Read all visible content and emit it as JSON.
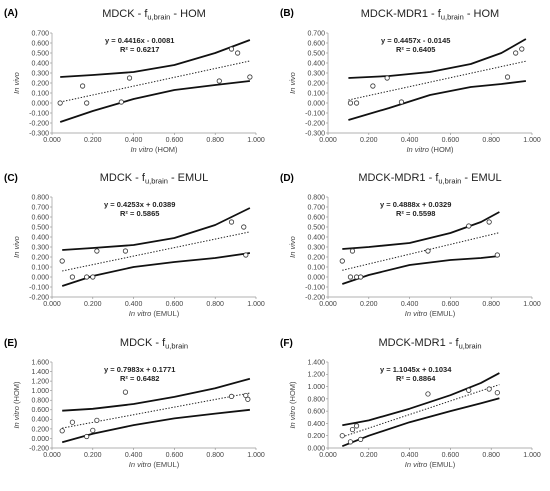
{
  "chart_data": [
    {
      "panel": "(A)",
      "type": "scatter",
      "title": {
        "main": "MDCK - f",
        "sub": "u,brain",
        "tail": " - HOM"
      },
      "xlabel": {
        "italic": "In vitro",
        "rest": " (HOM)"
      },
      "ylabel": {
        "italic": "In vivo",
        "rest": ""
      },
      "equation": "y = 0.4416x - 0.0081",
      "r2": "R² = 0.6217",
      "xlim": [
        0,
        1
      ],
      "ylim": [
        -0.3,
        0.7
      ],
      "xticks": [
        "0.000",
        "0.200",
        "0.400",
        "0.600",
        "0.800",
        "1.000"
      ],
      "yticks": [
        "-0.300",
        "-0.200",
        "-0.100",
        "0.000",
        "0.100",
        "0.200",
        "0.300",
        "0.400",
        "0.500",
        "0.600",
        "0.700"
      ],
      "points": [
        [
          0.04,
          0.0
        ],
        [
          0.15,
          0.17
        ],
        [
          0.17,
          0.0
        ],
        [
          0.34,
          0.01
        ],
        [
          0.38,
          0.25
        ],
        [
          0.82,
          0.22
        ],
        [
          0.88,
          0.54
        ],
        [
          0.91,
          0.5
        ],
        [
          0.97,
          0.26
        ]
      ],
      "trend": {
        "slope": 0.4416,
        "intercept": -0.0081,
        "x": [
          0.04,
          0.97
        ]
      },
      "band_upper": [
        [
          0.04,
          0.26
        ],
        [
          0.2,
          0.28
        ],
        [
          0.4,
          0.31
        ],
        [
          0.6,
          0.38
        ],
        [
          0.8,
          0.5
        ],
        [
          0.97,
          0.63
        ]
      ],
      "band_lower": [
        [
          0.04,
          -0.19
        ],
        [
          0.2,
          -0.08
        ],
        [
          0.4,
          0.04
        ],
        [
          0.6,
          0.13
        ],
        [
          0.8,
          0.18
        ],
        [
          0.97,
          0.22
        ]
      ]
    },
    {
      "panel": "(B)",
      "type": "scatter",
      "title": {
        "main": "MDCK-MDR1 - f",
        "sub": "u,brain",
        "tail": " - HOM"
      },
      "xlabel": {
        "italic": "In vitro",
        "rest": " (HOM)"
      },
      "ylabel": {
        "italic": "In vivo",
        "rest": ""
      },
      "equation": "y = 0.4457x - 0.0145",
      "r2": "R² = 0.6405",
      "xlim": [
        0,
        1
      ],
      "ylim": [
        -0.3,
        0.7
      ],
      "xticks": [
        "0.000",
        "0.200",
        "0.400",
        "0.600",
        "0.800",
        "1.000"
      ],
      "yticks": [
        "-0.300",
        "-0.200",
        "-0.100",
        "0.000",
        "0.100",
        "0.200",
        "0.300",
        "0.400",
        "0.500",
        "0.600",
        "0.700"
      ],
      "points": [
        [
          0.11,
          0.0
        ],
        [
          0.14,
          0.0
        ],
        [
          0.22,
          0.17
        ],
        [
          0.29,
          0.25
        ],
        [
          0.36,
          0.01
        ],
        [
          0.88,
          0.26
        ],
        [
          0.92,
          0.5
        ],
        [
          0.95,
          0.54
        ]
      ],
      "trend": {
        "slope": 0.4457,
        "intercept": -0.0145,
        "x": [
          0.1,
          0.97
        ]
      },
      "band_upper": [
        [
          0.1,
          0.25
        ],
        [
          0.3,
          0.27
        ],
        [
          0.5,
          0.31
        ],
        [
          0.7,
          0.39
        ],
        [
          0.85,
          0.5
        ],
        [
          0.97,
          0.64
        ]
      ],
      "band_lower": [
        [
          0.1,
          -0.17
        ],
        [
          0.3,
          -0.05
        ],
        [
          0.5,
          0.08
        ],
        [
          0.7,
          0.16
        ],
        [
          0.85,
          0.19
        ],
        [
          0.97,
          0.22
        ]
      ]
    },
    {
      "panel": "(C)",
      "type": "scatter",
      "title": {
        "main": "MDCK - f",
        "sub": "u,brain",
        "tail": " - EMUL"
      },
      "xlabel": {
        "italic": "In vitro",
        "rest": " (EMUL)"
      },
      "ylabel": {
        "italic": "In vivo",
        "rest": ""
      },
      "equation": "y = 0.4253x + 0.0389",
      "r2": "R² = 0.5865",
      "xlim": [
        0,
        1
      ],
      "ylim": [
        -0.2,
        0.8
      ],
      "xticks": [
        "0.000",
        "0.200",
        "0.400",
        "0.600",
        "0.800",
        "1.000"
      ],
      "yticks": [
        "-0.200",
        "-0.100",
        "0.000",
        "0.100",
        "0.200",
        "0.300",
        "0.400",
        "0.500",
        "0.600",
        "0.700",
        "0.800"
      ],
      "points": [
        [
          0.05,
          0.16
        ],
        [
          0.1,
          0.0
        ],
        [
          0.17,
          0.0
        ],
        [
          0.2,
          0.0
        ],
        [
          0.22,
          0.26
        ],
        [
          0.36,
          0.26
        ],
        [
          0.88,
          0.55
        ],
        [
          0.94,
          0.5
        ],
        [
          0.95,
          0.22
        ]
      ],
      "trend": {
        "slope": 0.4253,
        "intercept": 0.0389,
        "x": [
          0.05,
          0.97
        ]
      },
      "band_upper": [
        [
          0.05,
          0.27
        ],
        [
          0.2,
          0.29
        ],
        [
          0.4,
          0.32
        ],
        [
          0.6,
          0.39
        ],
        [
          0.8,
          0.52
        ],
        [
          0.97,
          0.69
        ]
      ],
      "band_lower": [
        [
          0.05,
          -0.09
        ],
        [
          0.2,
          0.01
        ],
        [
          0.4,
          0.1
        ],
        [
          0.6,
          0.15
        ],
        [
          0.8,
          0.19
        ],
        [
          0.97,
          0.24
        ]
      ]
    },
    {
      "panel": "(D)",
      "type": "scatter",
      "title": {
        "main": "MDCK-MDR1 - f",
        "sub": "u,brain",
        "tail": " - EMUL"
      },
      "xlabel": {
        "italic": "In vitro",
        "rest": " (EMUL)"
      },
      "ylabel": {
        "italic": "In vivo",
        "rest": ""
      },
      "equation": "y = 0.4888x + 0.0329",
      "r2": "R² = 0.5598",
      "xlim": [
        0,
        1
      ],
      "ylim": [
        -0.2,
        0.8
      ],
      "xticks": [
        "0.000",
        "0.200",
        "0.400",
        "0.600",
        "0.800",
        "1.000"
      ],
      "yticks": [
        "-0.200",
        "-0.100",
        "0.000",
        "0.100",
        "0.200",
        "0.300",
        "0.400",
        "0.500",
        "0.600",
        "0.700",
        "0.800"
      ],
      "points": [
        [
          0.07,
          0.16
        ],
        [
          0.11,
          0.0
        ],
        [
          0.12,
          0.26
        ],
        [
          0.14,
          0.0
        ],
        [
          0.16,
          0.0
        ],
        [
          0.49,
          0.26
        ],
        [
          0.69,
          0.51
        ],
        [
          0.79,
          0.55
        ],
        [
          0.83,
          0.22
        ]
      ],
      "trend": {
        "slope": 0.4888,
        "intercept": 0.0329,
        "x": [
          0.07,
          0.84
        ]
      },
      "band_upper": [
        [
          0.07,
          0.28
        ],
        [
          0.2,
          0.3
        ],
        [
          0.4,
          0.34
        ],
        [
          0.6,
          0.44
        ],
        [
          0.75,
          0.55
        ],
        [
          0.84,
          0.65
        ]
      ],
      "band_lower": [
        [
          0.07,
          -0.07
        ],
        [
          0.2,
          0.02
        ],
        [
          0.4,
          0.12
        ],
        [
          0.6,
          0.17
        ],
        [
          0.75,
          0.19
        ],
        [
          0.84,
          0.21
        ]
      ]
    },
    {
      "panel": "(E)",
      "type": "scatter",
      "title": {
        "main": "MDCK - f",
        "sub": "u,brain",
        "tail": ""
      },
      "xlabel": {
        "italic": "In vitro",
        "rest": " (EMUL)"
      },
      "ylabel": {
        "italic": "In vitro",
        "rest": " (HOM)"
      },
      "equation": "y = 0.7983x + 0.1771",
      "r2": "R² = 0.6482",
      "xlim": [
        0,
        1
      ],
      "ylim": [
        -0.2,
        1.6
      ],
      "xticks": [
        "0.000",
        "0.200",
        "0.400",
        "0.600",
        "0.800",
        "1.000"
      ],
      "yticks": [
        "-0.200",
        "0.000",
        "0.200",
        "0.400",
        "0.600",
        "0.800",
        "1.000",
        "1.200",
        "1.400",
        "1.600"
      ],
      "points": [
        [
          0.05,
          0.16
        ],
        [
          0.1,
          0.34
        ],
        [
          0.17,
          0.04
        ],
        [
          0.2,
          0.17
        ],
        [
          0.22,
          0.38
        ],
        [
          0.36,
          0.97
        ],
        [
          0.88,
          0.88
        ],
        [
          0.95,
          0.9
        ],
        [
          0.96,
          0.82
        ]
      ],
      "trend": {
        "slope": 0.7983,
        "intercept": 0.1771,
        "x": [
          0.05,
          0.97
        ]
      },
      "band_upper": [
        [
          0.05,
          0.58
        ],
        [
          0.2,
          0.62
        ],
        [
          0.4,
          0.72
        ],
        [
          0.6,
          0.87
        ],
        [
          0.8,
          1.05
        ],
        [
          0.97,
          1.25
        ]
      ],
      "band_lower": [
        [
          0.05,
          -0.08
        ],
        [
          0.2,
          0.1
        ],
        [
          0.4,
          0.28
        ],
        [
          0.6,
          0.42
        ],
        [
          0.8,
          0.52
        ],
        [
          0.97,
          0.6
        ]
      ]
    },
    {
      "panel": "(F)",
      "type": "scatter",
      "title": {
        "main": "MDCK-MDR1 - f",
        "sub": "u,brain",
        "tail": ""
      },
      "xlabel": {
        "italic": "In vitro",
        "rest": " (EMUL)"
      },
      "ylabel": {
        "italic": "In vitro",
        "rest": " (HOM)"
      },
      "equation": "y = 1.1045x + 0.1034",
      "r2": "R² = 0.8864",
      "xlim": [
        0,
        1
      ],
      "ylim": [
        0,
        1.4
      ],
      "xticks": [
        "0.000",
        "0.200",
        "0.400",
        "0.600",
        "0.800",
        "1.000"
      ],
      "yticks": [
        "0.000",
        "0.200",
        "0.400",
        "0.600",
        "0.800",
        "1.000",
        "1.200",
        "1.400"
      ],
      "points": [
        [
          0.07,
          0.2
        ],
        [
          0.11,
          0.1
        ],
        [
          0.12,
          0.3
        ],
        [
          0.14,
          0.36
        ],
        [
          0.16,
          0.14
        ],
        [
          0.49,
          0.88
        ],
        [
          0.69,
          0.94
        ],
        [
          0.79,
          0.96
        ],
        [
          0.83,
          0.9
        ]
      ],
      "trend": {
        "slope": 1.1045,
        "intercept": 0.1034,
        "x": [
          0.07,
          0.84
        ]
      },
      "band_upper": [
        [
          0.07,
          0.37
        ],
        [
          0.2,
          0.45
        ],
        [
          0.4,
          0.64
        ],
        [
          0.6,
          0.86
        ],
        [
          0.75,
          1.06
        ],
        [
          0.84,
          1.22
        ]
      ],
      "band_lower": [
        [
          0.07,
          0.03
        ],
        [
          0.2,
          0.2
        ],
        [
          0.4,
          0.42
        ],
        [
          0.6,
          0.6
        ],
        [
          0.75,
          0.73
        ],
        [
          0.84,
          0.81
        ]
      ]
    }
  ]
}
